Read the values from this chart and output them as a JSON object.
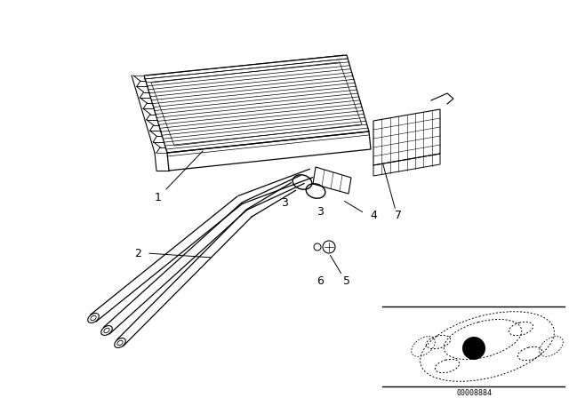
{
  "bg_color": "#ffffff",
  "line_color": "#000000",
  "fig_width": 6.4,
  "fig_height": 4.48,
  "dpi": 100,
  "part_id_text": "00008884"
}
